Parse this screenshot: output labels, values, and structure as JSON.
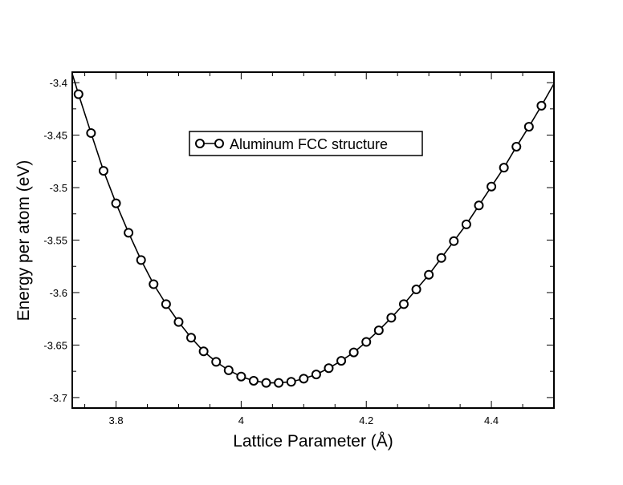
{
  "chart_data": {
    "type": "line",
    "title": "",
    "xlabel": "Lattice Parameter (Å)",
    "ylabel": "Energy per atom (eV)",
    "xlim": [
      3.73,
      4.5
    ],
    "ylim": [
      -3.71,
      -3.39
    ],
    "x_ticks": [
      3.8,
      4.0,
      4.2,
      4.4
    ],
    "x_tick_labels": [
      "3.8",
      "4",
      "4.2",
      "4.4"
    ],
    "y_ticks": [
      -3.4,
      -3.45,
      -3.5,
      -3.55,
      -3.6,
      -3.65,
      -3.7
    ],
    "y_tick_labels": [
      "-3.4",
      "-3.45",
      "-3.5",
      "-3.55",
      "-3.6",
      "-3.65",
      "-3.7"
    ],
    "grid": false,
    "legend_position": "top-center",
    "marker": "open-circle",
    "series": [
      {
        "name": "Aluminum FCC structure",
        "color": "#000000",
        "x": [
          3.74,
          3.76,
          3.78,
          3.8,
          3.82,
          3.84,
          3.86,
          3.88,
          3.9,
          3.92,
          3.94,
          3.96,
          3.98,
          4.0,
          4.02,
          4.04,
          4.06,
          4.08,
          4.1,
          4.12,
          4.14,
          4.16,
          4.18,
          4.2,
          4.22,
          4.24,
          4.26,
          4.28,
          4.3,
          4.32,
          4.34,
          4.36,
          4.38,
          4.4,
          4.42,
          4.44,
          4.46,
          4.48
        ],
        "y": [
          -3.411,
          -3.448,
          -3.484,
          -3.515,
          -3.543,
          -3.569,
          -3.592,
          -3.611,
          -3.628,
          -3.643,
          -3.656,
          -3.666,
          -3.674,
          -3.68,
          -3.684,
          -3.686,
          -3.686,
          -3.685,
          -3.682,
          -3.678,
          -3.672,
          -3.665,
          -3.657,
          -3.647,
          -3.636,
          -3.624,
          -3.611,
          -3.597,
          -3.583,
          -3.567,
          -3.551,
          -3.535,
          -3.517,
          -3.499,
          -3.481,
          -3.461,
          -3.442,
          -3.422
        ]
      }
    ]
  }
}
